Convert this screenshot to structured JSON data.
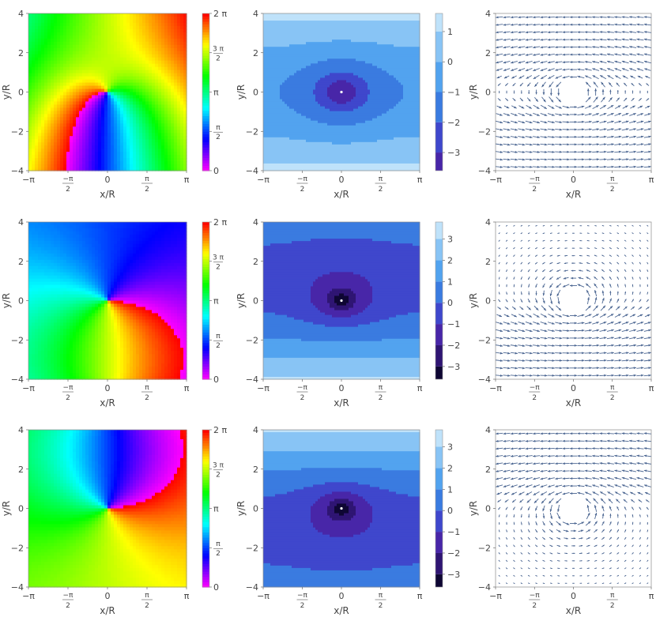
{
  "chart_data": {
    "type": "figure-grid",
    "rows": 3,
    "columns": 3,
    "panel_types": [
      "heatmap",
      "contour",
      "vector-field"
    ],
    "x_label": "x/R",
    "y_label": "y/R",
    "x_range": [
      -3.14159,
      3.14159
    ],
    "y_range": [
      -4,
      4
    ],
    "x_ticks": [
      {
        "v": -3.14159,
        "num": "",
        "main": "−π",
        "den": ""
      },
      {
        "v": -1.5708,
        "num": "−π",
        "main": "",
        "den": "2"
      },
      {
        "v": 0,
        "num": "",
        "main": "0",
        "den": ""
      },
      {
        "v": 1.5708,
        "num": "π",
        "main": "",
        "den": "2"
      },
      {
        "v": 3.14159,
        "num": "",
        "main": "π",
        "den": ""
      }
    ],
    "y_ticks": [
      {
        "v": -4,
        "label": "−4"
      },
      {
        "v": -2,
        "label": "−2"
      },
      {
        "v": 0,
        "label": "0"
      },
      {
        "v": 2,
        "label": "2"
      },
      {
        "v": 4,
        "label": "4"
      }
    ],
    "phase_colorbar_ticks": [
      {
        "v": 0,
        "num": "",
        "main": "0",
        "den": ""
      },
      {
        "v": 1.5708,
        "num": "π",
        "main": "",
        "den": "2"
      },
      {
        "v": 3.14159,
        "num": "",
        "main": "π",
        "den": ""
      },
      {
        "v": 4.71239,
        "num": "3 π",
        "main": "",
        "den": "2"
      },
      {
        "v": 6.28319,
        "num": "",
        "main": "2 π",
        "den": ""
      }
    ],
    "contour_colors": [
      "#0e0633",
      "#2f1573",
      "#4826a8",
      "#3f47cc",
      "#3a7be0",
      "#52a3ef",
      "#88c4f5",
      "#bfe2fa"
    ],
    "panels": [
      {
        "row": 1,
        "phase_background": "x-gradient",
        "contour": {
          "levels": [
            -3,
            -2,
            -1,
            0,
            1
          ],
          "colorbar_range": [
            -3.6,
            1.6
          ],
          "level_labels": [
            "−3",
            "−2",
            "−1",
            "0",
            "1"
          ]
        },
        "vector_field": {
          "far_field": "left-top-right-bottom"
        }
      },
      {
        "row": 2,
        "phase_background": "uniform-top",
        "contour": {
          "levels": [
            -3,
            -2,
            -1,
            0,
            1,
            2,
            3
          ],
          "colorbar_range": [
            -3.6,
            3.8
          ],
          "level_labels": [
            "−3",
            "−2",
            "−1",
            "0",
            "1",
            "2",
            "3"
          ]
        },
        "vector_field": {
          "far_field": "right-bottom"
        }
      },
      {
        "row": 3,
        "phase_background": "uniform-bottom",
        "contour": {
          "levels": [
            -3,
            -2,
            -1,
            0,
            1,
            2,
            3
          ],
          "colorbar_range": [
            -3.6,
            3.8
          ],
          "level_labels": [
            "−3",
            "−2",
            "−1",
            "0",
            "1",
            "2",
            "3"
          ]
        },
        "vector_field": {
          "far_field": "left-top"
        }
      }
    ],
    "colors": {
      "arrow": "#4a6591",
      "contour_line": "#3a4a6a",
      "axis": "#555555"
    }
  }
}
